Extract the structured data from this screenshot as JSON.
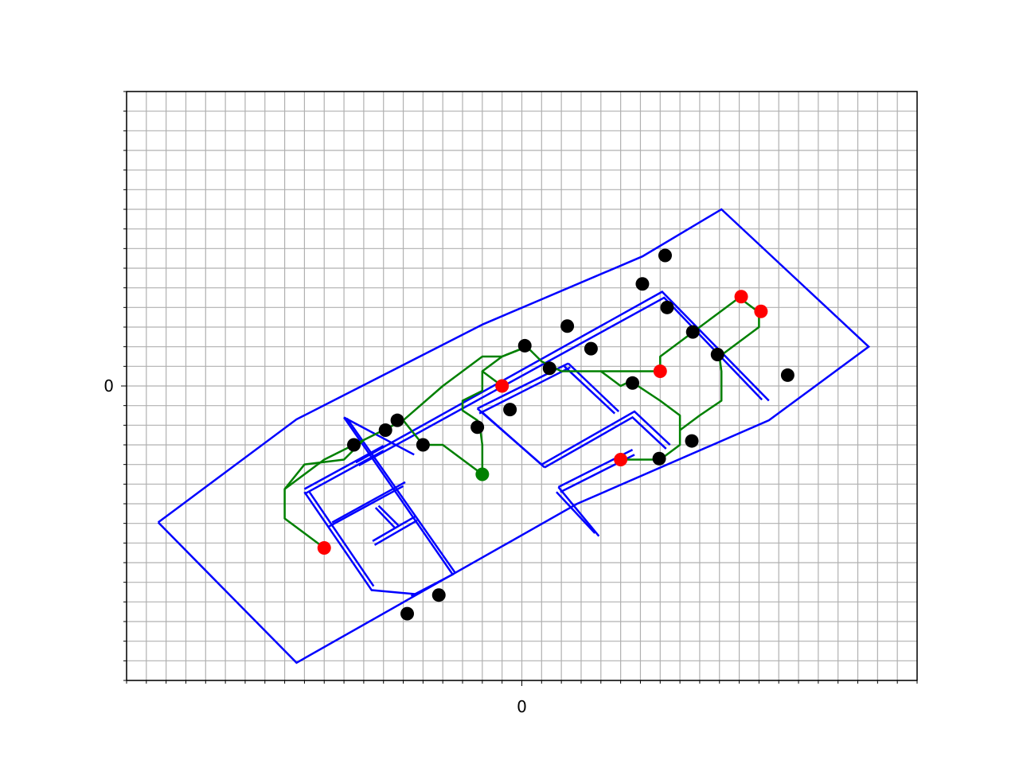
{
  "chart_data": {
    "type": "scatter",
    "title": "",
    "xlabel": "",
    "ylabel": "",
    "xlim": [
      -40,
      40
    ],
    "ylim": [
      -30,
      30
    ],
    "grid": true,
    "grid_step": 2,
    "x_tick_labels": [
      {
        "value": 0,
        "label": "0"
      }
    ],
    "y_tick_labels": [
      {
        "value": 0,
        "label": "0"
      }
    ],
    "colors": {
      "walls": "#0000ff",
      "path": "#008000",
      "anchors": "#000000",
      "targets": "#ff0000",
      "start": "#008000",
      "grid": "#b0b0b0"
    },
    "walls": [
      [
        [
          -36.8,
          -13.9
        ],
        [
          -22.8,
          -3.4
        ],
        [
          -3.9,
          6.3
        ],
        [
          12.2,
          13.2
        ],
        [
          20.2,
          18.0
        ],
        [
          35.1,
          4.0
        ],
        [
          25.0,
          -3.5
        ],
        [
          5.6,
          -12.0
        ],
        [
          -22.8,
          -28.2
        ],
        [
          -36.8,
          -13.9
        ]
      ],
      [
        [
          -18.0,
          -3.2
        ],
        [
          -7.0,
          -19.2
        ],
        [
          -11.2,
          -21.4
        ]
      ],
      [
        [
          -17.7,
          -3.3
        ],
        [
          -6.7,
          -19.1
        ]
      ],
      [
        [
          -22.0,
          -10.5
        ],
        [
          -14.0,
          -6.1
        ]
      ],
      [
        [
          -22.0,
          -11.0
        ],
        [
          -14.0,
          -6.6
        ]
      ],
      [
        [
          -18.0,
          -3.2
        ],
        [
          -10.9,
          -7.0
        ]
      ],
      [
        [
          -22.0,
          -10.8
        ],
        [
          -15.2,
          -20.8
        ],
        [
          -10.8,
          -21.2
        ]
      ],
      [
        [
          -21.5,
          -10.8
        ],
        [
          -15.0,
          -20.4
        ]
      ],
      [
        [
          -19.2,
          -13.9
        ],
        [
          -11.8,
          -9.8
        ]
      ],
      [
        [
          -19.5,
          -14.3
        ],
        [
          -12.0,
          -10.2
        ]
      ],
      [
        [
          -14.8,
          -12.4
        ],
        [
          -12.8,
          -14.5
        ]
      ],
      [
        [
          -14.5,
          -12.2
        ],
        [
          -12.5,
          -14.2
        ]
      ],
      [
        [
          -15.1,
          -15.8
        ],
        [
          -10.8,
          -13.3
        ]
      ],
      [
        [
          -14.9,
          -16.2
        ],
        [
          -10.6,
          -13.7
        ]
      ],
      [
        [
          -16.8,
          -7.8
        ],
        [
          14.2,
          9.6
        ],
        [
          25.0,
          -1.5
        ]
      ],
      [
        [
          -16.5,
          -8.1
        ],
        [
          14.4,
          9.0
        ],
        [
          24.3,
          -1.4
        ]
      ],
      [
        [
          -4.5,
          -2.3
        ],
        [
          4.7,
          2.3
        ]
      ],
      [
        [
          -4.3,
          -2.8
        ],
        [
          4.9,
          1.9
        ]
      ],
      [
        [
          -4.5,
          -2.3
        ],
        [
          2.0,
          -8.0
        ]
      ],
      [
        [
          -4.1,
          -2.6
        ],
        [
          2.3,
          -8.3
        ]
      ],
      [
        [
          4.7,
          2.3
        ],
        [
          9.8,
          -2.6
        ]
      ],
      [
        [
          4.3,
          2.0
        ],
        [
          9.4,
          -2.8
        ]
      ],
      [
        [
          2.0,
          -8.0
        ],
        [
          11.4,
          -2.6
        ],
        [
          15.0,
          -6.0
        ]
      ],
      [
        [
          2.3,
          -8.3
        ],
        [
          11.2,
          -3.2
        ],
        [
          14.6,
          -6.4
        ]
      ],
      [
        [
          7.8,
          -15.3
        ],
        [
          3.7,
          -10.3
        ]
      ],
      [
        [
          7.4,
          -15.0
        ],
        [
          3.5,
          -10.8
        ]
      ],
      [
        [
          3.7,
          -10.3
        ],
        [
          11.2,
          -6.5
        ]
      ],
      [
        [
          3.9,
          -10.8
        ],
        [
          11.4,
          -7.0
        ]
      ]
    ],
    "path": [
      [
        -20.0,
        -16.5
      ],
      [
        -24.0,
        -13.5
      ],
      [
        -24.0,
        -10.5
      ],
      [
        -20.0,
        -7.5
      ],
      [
        -18.0,
        -6.5
      ],
      [
        -16.0,
        -5.5
      ],
      [
        -14.0,
        -4.5
      ],
      [
        -12.0,
        -3.5
      ],
      [
        -10.0,
        -6.0
      ],
      [
        -8.0,
        -6.0
      ],
      [
        -6.0,
        -7.5
      ],
      [
        -4.0,
        -9.0
      ],
      [
        -4.0,
        -7.5
      ],
      [
        -4.0,
        -6.0
      ],
      [
        -4.2,
        -4.5
      ],
      [
        -4.5,
        -3.5
      ],
      [
        -6.0,
        -2.5
      ],
      [
        -6.0,
        -1.5
      ],
      [
        -4.0,
        -0.5
      ],
      [
        -4.0,
        1.5
      ],
      [
        -2.0,
        0.0
      ],
      [
        -4.0,
        1.5
      ],
      [
        -2.0,
        3.0
      ],
      [
        0.5,
        4.0
      ],
      [
        2.0,
        2.5
      ],
      [
        4.0,
        1.5
      ],
      [
        8.0,
        1.5
      ],
      [
        12.0,
        1.5
      ],
      [
        14.0,
        1.5
      ],
      [
        14.0,
        3.0
      ],
      [
        16.0,
        4.5
      ],
      [
        18.0,
        6.0
      ],
      [
        20.0,
        7.5
      ],
      [
        22.0,
        9.0
      ],
      [
        24.0,
        7.5
      ],
      [
        24.0,
        6.0
      ],
      [
        22.0,
        4.5
      ],
      [
        20.0,
        3.0
      ],
      [
        20.2,
        1.5
      ],
      [
        20.2,
        -1.5
      ],
      [
        18.0,
        -3.0
      ],
      [
        16.0,
        -4.5
      ],
      [
        16.0,
        -6.0
      ],
      [
        14.0,
        -7.5
      ],
      [
        12.0,
        -7.5
      ],
      [
        10.0,
        -7.5
      ]
    ],
    "path_branch": [
      [
        8.0,
        1.5
      ],
      [
        10.0,
        0.0
      ],
      [
        11.0,
        0.5
      ],
      [
        14.0,
        -1.5
      ],
      [
        16.0,
        -3.0
      ],
      [
        16.0,
        -4.5
      ]
    ],
    "path_branch2": [
      [
        -24.0,
        -10.5
      ],
      [
        -22.0,
        -8.0
      ],
      [
        -18.0,
        -7.5
      ],
      [
        -16.0,
        -5.5
      ]
    ],
    "path_branch3": [
      [
        -12.0,
        -3.5
      ],
      [
        -8.0,
        0.0
      ],
      [
        -6.0,
        1.5
      ],
      [
        -4.0,
        3.0
      ],
      [
        -2.0,
        3.0
      ],
      [
        0.5,
        4.0
      ]
    ],
    "anchors": [
      [
        -17.0,
        -6.0
      ],
      [
        -13.8,
        -4.5
      ],
      [
        -12.6,
        -3.5
      ],
      [
        -10.0,
        -6.0
      ],
      [
        -4.5,
        -4.2
      ],
      [
        -1.2,
        -2.4
      ],
      [
        0.3,
        4.1
      ],
      [
        2.8,
        1.8
      ],
      [
        4.6,
        6.1
      ],
      [
        7.0,
        3.8
      ],
      [
        11.2,
        0.3
      ],
      [
        12.2,
        10.4
      ],
      [
        14.5,
        13.3
      ],
      [
        14.7,
        8.0
      ],
      [
        17.3,
        5.5
      ],
      [
        19.8,
        3.2
      ],
      [
        26.9,
        1.1
      ],
      [
        17.2,
        -5.6
      ],
      [
        13.9,
        -7.4
      ],
      [
        -11.6,
        -23.2
      ],
      [
        -8.4,
        -21.3
      ]
    ],
    "targets": [
      [
        -20.0,
        -16.5
      ],
      [
        -2.0,
        0.0
      ],
      [
        14.0,
        1.5
      ],
      [
        22.2,
        9.1
      ],
      [
        24.2,
        7.6
      ],
      [
        10.0,
        -7.5
      ]
    ],
    "start": [
      [
        -4.0,
        -9.0
      ]
    ]
  }
}
